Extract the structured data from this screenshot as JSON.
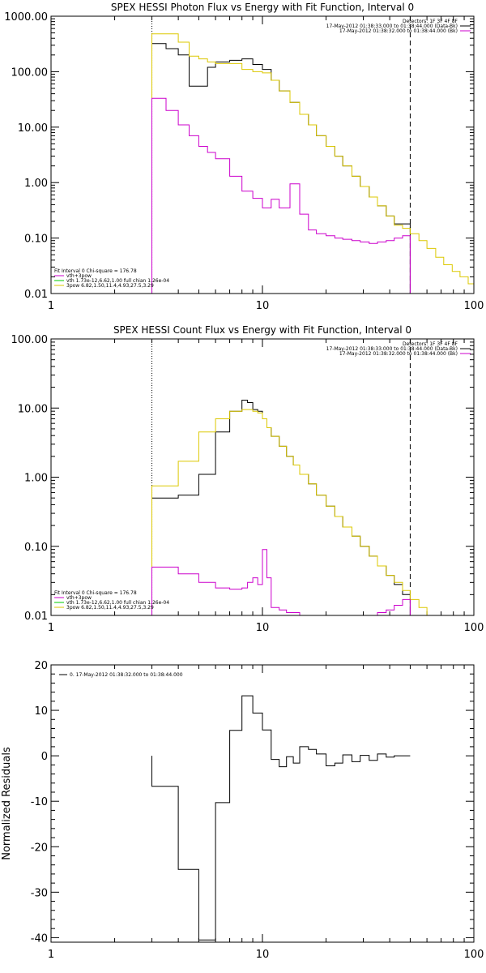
{
  "chart_data": [
    {
      "type": "line",
      "title": "SPEX HESSI Photon Flux vs Energy with Fit Function, Interval 0",
      "xscale": "log",
      "yscale": "log",
      "xlim": [
        1,
        100
      ],
      "ylim": [
        0.01,
        1000
      ],
      "xticks": [
        "1",
        "10",
        "100"
      ],
      "yticks": [
        "0.01",
        "0.10",
        "1.00",
        "10.00",
        "100.00",
        "1000.00"
      ],
      "grid": false,
      "vlines": [
        {
          "x": 3,
          "style": "dotted"
        },
        {
          "x": 50,
          "style": "dashed"
        }
      ],
      "legend_top": {
        "placement": "top-right",
        "lines": [
          {
            "text": "Detectors: 1F 3F 4F 8F",
            "color": ""
          },
          {
            "text": "17-May-2012 01:38:33.000 to 01:38:44.000 (Data-Bk)",
            "color": "#000000"
          },
          {
            "text": "17-May-2012 01:38:32.000 to 01:38:44.000 (Bk)",
            "color": "#cc00cc"
          }
        ]
      },
      "legend_bottom": {
        "placement": "bottom-left",
        "lines": [
          {
            "text": "Fit Interval  0    Chi-square = 176.78",
            "color": ""
          },
          {
            "text": "vth+3pow",
            "color": "#cc00cc"
          },
          {
            "text": "vth 1.73e-12,6.62,1.00  full chian 1.26e-04",
            "color": "#00cc00"
          },
          {
            "text": "3pow 6.82,1.50,11.4,4.93,27.5,3.29",
            "color": "#dcc800"
          }
        ]
      },
      "bin_edges": [
        3,
        3.5,
        4,
        4.5,
        5,
        5.5,
        6,
        7,
        8,
        9,
        10,
        11,
        12,
        13.5,
        15,
        16.5,
        18,
        20,
        22,
        24,
        26.5,
        29,
        32,
        35,
        38.5,
        42,
        46,
        50,
        55,
        60,
        66,
        72,
        79,
        86,
        94,
        100
      ],
      "series": [
        {
          "color": "#000000",
          "values": [
            320,
            260,
            200,
            55,
            55,
            120,
            150,
            160,
            170,
            135,
            110,
            70,
            45,
            28,
            17,
            11,
            7,
            4.5,
            3,
            2,
            1.3,
            0.85,
            0.55,
            0.38,
            0.25,
            0.18,
            0.18
          ]
        },
        {
          "color": "#dcc800",
          "values": [
            480,
            480,
            340,
            190,
            170,
            150,
            140,
            140,
            110,
            100,
            95,
            70,
            45,
            28,
            17,
            11,
            7,
            4.5,
            3,
            2,
            1.3,
            0.85,
            0.55,
            0.38,
            0.25,
            0.17,
            0.15,
            0.12,
            0.09,
            0.065,
            0.045,
            0.033,
            0.025,
            0.02,
            0.015
          ]
        },
        {
          "color": "#cc00cc",
          "values": [
            33,
            20,
            11,
            7,
            4.5,
            3.5,
            2.7,
            1.3,
            0.7,
            0.52,
            0.35,
            0.5,
            0.35,
            0.95,
            0.27,
            0.14,
            0.12,
            0.11,
            0.1,
            0.095,
            0.09,
            0.085,
            0.08,
            0.085,
            0.09,
            0.1,
            0.11
          ]
        }
      ]
    },
    {
      "type": "line",
      "title": "SPEX HESSI Count Flux vs Energy with Fit Function, Interval 0",
      "xscale": "log",
      "yscale": "log",
      "xlim": [
        1,
        100
      ],
      "ylim": [
        0.01,
        100
      ],
      "xticks": [
        "1",
        "10",
        "100"
      ],
      "yticks": [
        "0.01",
        "0.10",
        "1.00",
        "10.00",
        "100.00"
      ],
      "grid": false,
      "vlines": [
        {
          "x": 3,
          "style": "dotted"
        },
        {
          "x": 50,
          "style": "dashed"
        }
      ],
      "legend_top": {
        "placement": "top-right",
        "lines": [
          {
            "text": "Detectors: 1F 3F 4F 8F",
            "color": ""
          },
          {
            "text": "17-May-2012 01:38:33.000 to 01:38:44.000 (Data-Bk)",
            "color": "#000000"
          },
          {
            "text": "17-May-2012 01:38:32.000 to 01:38:44.000 (Bk)",
            "color": "#cc00cc"
          }
        ]
      },
      "legend_bottom": {
        "placement": "bottom-left",
        "lines": [
          {
            "text": "Fit Interval  0    Chi-square = 176.78",
            "color": ""
          },
          {
            "text": "vth+3pow",
            "color": "#cc00cc"
          },
          {
            "text": "vth 1.73e-12,6.62,1.00  full chian 1.26e-04",
            "color": "#00cc00"
          },
          {
            "text": "3pow 6.82,1.50,11.4,4.93,27.5,3.29",
            "color": "#dcc800"
          }
        ]
      },
      "bin_edges": [
        3,
        4,
        5,
        6,
        7,
        8,
        8.5,
        9,
        9.5,
        10,
        10.5,
        11,
        12,
        13,
        14,
        15,
        16.5,
        18,
        20,
        22,
        24,
        26.5,
        29,
        32,
        35,
        38.5,
        42,
        46,
        50,
        55,
        60,
        66,
        72
      ],
      "series": [
        {
          "color": "#000000",
          "values": [
            0.5,
            0.55,
            1.1,
            4.5,
            9,
            13,
            12,
            9.5,
            9,
            7,
            5.2,
            3.9,
            2.8,
            2,
            1.5,
            1.1,
            0.8,
            0.55,
            0.38,
            0.27,
            0.19,
            0.14,
            0.1,
            0.072,
            0.052,
            0.038,
            0.028,
            0.02
          ]
        },
        {
          "color": "#dcc800",
          "values": [
            0.75,
            1.7,
            4.5,
            7,
            9,
            9.5,
            9.5,
            9,
            8.5,
            7,
            5.2,
            3.9,
            2.8,
            2,
            1.5,
            1.1,
            0.8,
            0.55,
            0.38,
            0.27,
            0.19,
            0.14,
            0.1,
            0.072,
            0.052,
            0.038,
            0.03,
            0.023,
            0.017,
            0.013,
            0.01
          ]
        },
        {
          "color": "#cc00cc",
          "values": [
            0.05,
            0.04,
            0.03,
            0.025,
            0.024,
            0.025,
            0.03,
            0.035,
            0.028,
            0.09,
            0.035,
            0.013,
            0.012,
            0.011,
            0.011,
            0.01,
            0.01,
            0.01,
            0.01,
            0.0095,
            0.0095,
            0.0095,
            0.01,
            0.01,
            0.011,
            0.012,
            0.014,
            0.017
          ]
        }
      ]
    },
    {
      "type": "line",
      "title": "",
      "xscale": "log",
      "yscale": "linear",
      "xlim": [
        1,
        100
      ],
      "ylim": [
        -41,
        20
      ],
      "xticks": [
        "1",
        "10",
        "100"
      ],
      "yticks": [
        "-40",
        "-30",
        "-20",
        "-10",
        "0",
        "10",
        "20"
      ],
      "ylabel": "Normalized Residuals",
      "grid": false,
      "legend_top": {
        "placement": "top-left",
        "lines": [
          {
            "text": "0. 17-May-2012 01:38:32.000 to 01:38:44.000",
            "color": "#000000"
          }
        ]
      },
      "bin_edges": [
        3,
        4,
        5,
        6,
        7,
        8,
        9,
        10,
        11,
        12,
        13,
        14,
        15,
        16.5,
        18,
        20,
        22,
        24,
        26.5,
        29,
        32,
        35,
        38.5,
        42,
        46,
        50
      ],
      "series": [
        {
          "color": "#000000",
          "values": [
            -6.7,
            -25,
            -40.5,
            -10.3,
            5.6,
            13.2,
            9.4,
            5.7,
            -0.8,
            -2.4,
            -0.2,
            -1.6,
            2,
            1.4,
            0.4,
            -2.2,
            -1.6,
            0.2,
            -1.3,
            0.1,
            -1,
            0.4,
            -0.3,
            0,
            0
          ]
        }
      ]
    }
  ]
}
